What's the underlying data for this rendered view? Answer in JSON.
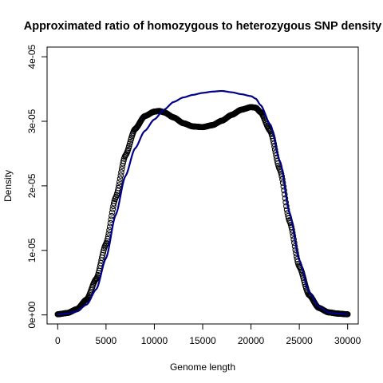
{
  "chart_data": {
    "type": "line",
    "title": "Approximated ratio of homozygous to heterozygous SNP density",
    "xlabel": "Genome length",
    "ylabel": "Density",
    "xlim": [
      -1100,
      31100
    ],
    "ylim": [
      -1.4e-06,
      4.15e-05
    ],
    "xticks": [
      0,
      5000,
      10000,
      15000,
      20000,
      25000,
      30000
    ],
    "xtick_labels": [
      "0",
      "5000",
      "10000",
      "15000",
      "20000",
      "25000",
      "30000"
    ],
    "yticks": [
      0,
      1e-05,
      2e-05,
      3e-05,
      4e-05
    ],
    "ytick_labels": [
      "0e+00",
      "1e-05",
      "2e-05",
      "3e-05",
      "4e-05"
    ],
    "grid": false,
    "legend": "none",
    "series": [
      {
        "style": "points",
        "color": "#000000",
        "marker": "open-circle",
        "x": [
          0,
          1000,
          2000,
          3000,
          4000,
          5000,
          6000,
          7000,
          8000,
          9000,
          10000,
          10500,
          11000,
          12000,
          13000,
          14000,
          15000,
          16000,
          17000,
          18000,
          19000,
          20000,
          20500,
          21000,
          22000,
          23000,
          24000,
          25000,
          26000,
          27000,
          28000,
          29000,
          30000
        ],
        "y": [
          1e-07,
          3e-07,
          9e-07,
          2.4e-06,
          5.6e-06,
          1.1e-05,
          1.82e-05,
          2.47e-05,
          2.88e-05,
          3.08e-05,
          3.15e-05,
          3.16e-05,
          3.14e-05,
          3.06e-05,
          2.97e-05,
          2.92e-05,
          2.91e-05,
          2.94e-05,
          3.01e-05,
          3.1e-05,
          3.18e-05,
          3.22e-05,
          3.21e-05,
          3.14e-05,
          2.85e-05,
          2.25e-05,
          1.45e-05,
          7.5e-06,
          3.1e-06,
          1.1e-06,
          4e-07,
          2e-07,
          1e-07
        ]
      },
      {
        "style": "line",
        "color": "#00008B",
        "x": [
          0,
          1000,
          2000,
          3000,
          4000,
          5000,
          6000,
          7000,
          8000,
          9000,
          10000,
          11000,
          12000,
          13000,
          14000,
          15000,
          16000,
          17000,
          18000,
          19000,
          20000,
          20500,
          21000,
          22000,
          23000,
          24000,
          25000,
          26000,
          27000,
          28000,
          29000,
          30000
        ],
        "y": [
          1e-07,
          2e-07,
          6e-07,
          1.6e-06,
          4e-06,
          8.8e-06,
          1.55e-05,
          2.15e-05,
          2.58e-05,
          2.85e-05,
          3.03e-05,
          3.18e-05,
          3.3e-05,
          3.37e-05,
          3.41e-05,
          3.44e-05,
          3.46e-05,
          3.47e-05,
          3.45e-05,
          3.42e-05,
          3.39e-05,
          3.35e-05,
          3.25e-05,
          2.95e-05,
          2.38e-05,
          1.58e-05,
          8.5e-06,
          3.6e-06,
          1.3e-06,
          4e-07,
          2e-07,
          1e-07
        ]
      }
    ]
  }
}
